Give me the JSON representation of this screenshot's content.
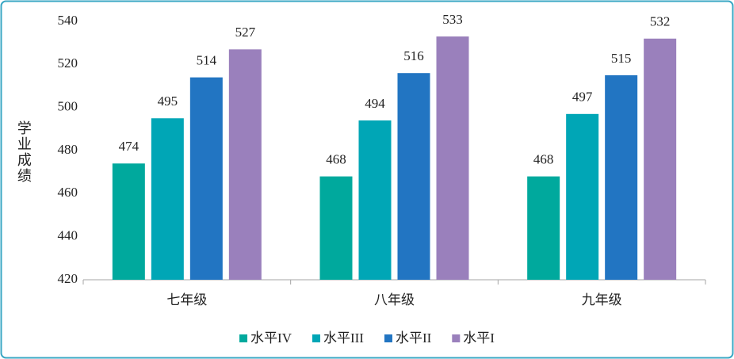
{
  "chart_data": {
    "type": "bar",
    "y_label": "学业成绩",
    "categories": [
      "七年级",
      "八年级",
      "九年级"
    ],
    "series": [
      {
        "name": "水平IV",
        "color": "#00a99d",
        "values": [
          474,
          468,
          468
        ]
      },
      {
        "name": "水平III",
        "color": "#00a6b6",
        "values": [
          495,
          494,
          497
        ]
      },
      {
        "name": "水平II",
        "color": "#2275c2",
        "values": [
          514,
          516,
          515
        ]
      },
      {
        "name": "水平I",
        "color": "#9a80bc",
        "values": [
          527,
          533,
          532
        ]
      }
    ],
    "ylim": [
      420,
      540
    ],
    "yticks": [
      420,
      440,
      460,
      480,
      500,
      520,
      540
    ],
    "grid": false,
    "legend": "bottom"
  }
}
